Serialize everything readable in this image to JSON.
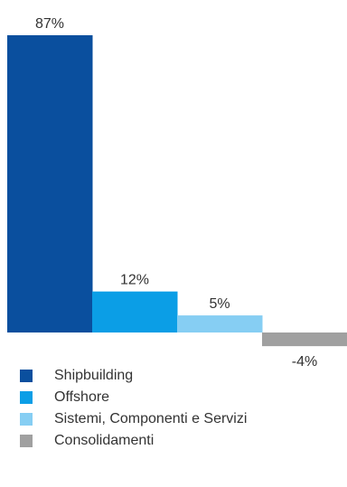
{
  "chart_data": {
    "type": "bar",
    "categories": [
      "Shipbuilding",
      "Offshore",
      "Sistemi, Componenti e Servizi",
      "Consolidamenti"
    ],
    "values": [
      87,
      12,
      5,
      -4
    ],
    "data_labels": [
      "87%",
      "12%",
      "5%",
      "-4%"
    ],
    "colors": [
      "#0a4f9e",
      "#0b9ee6",
      "#86cef3",
      "#a0a0a0"
    ],
    "title": "",
    "xlabel": "",
    "ylabel": "",
    "ylim": [
      -4,
      87
    ],
    "grid": false,
    "legend_placement": "bottom"
  }
}
